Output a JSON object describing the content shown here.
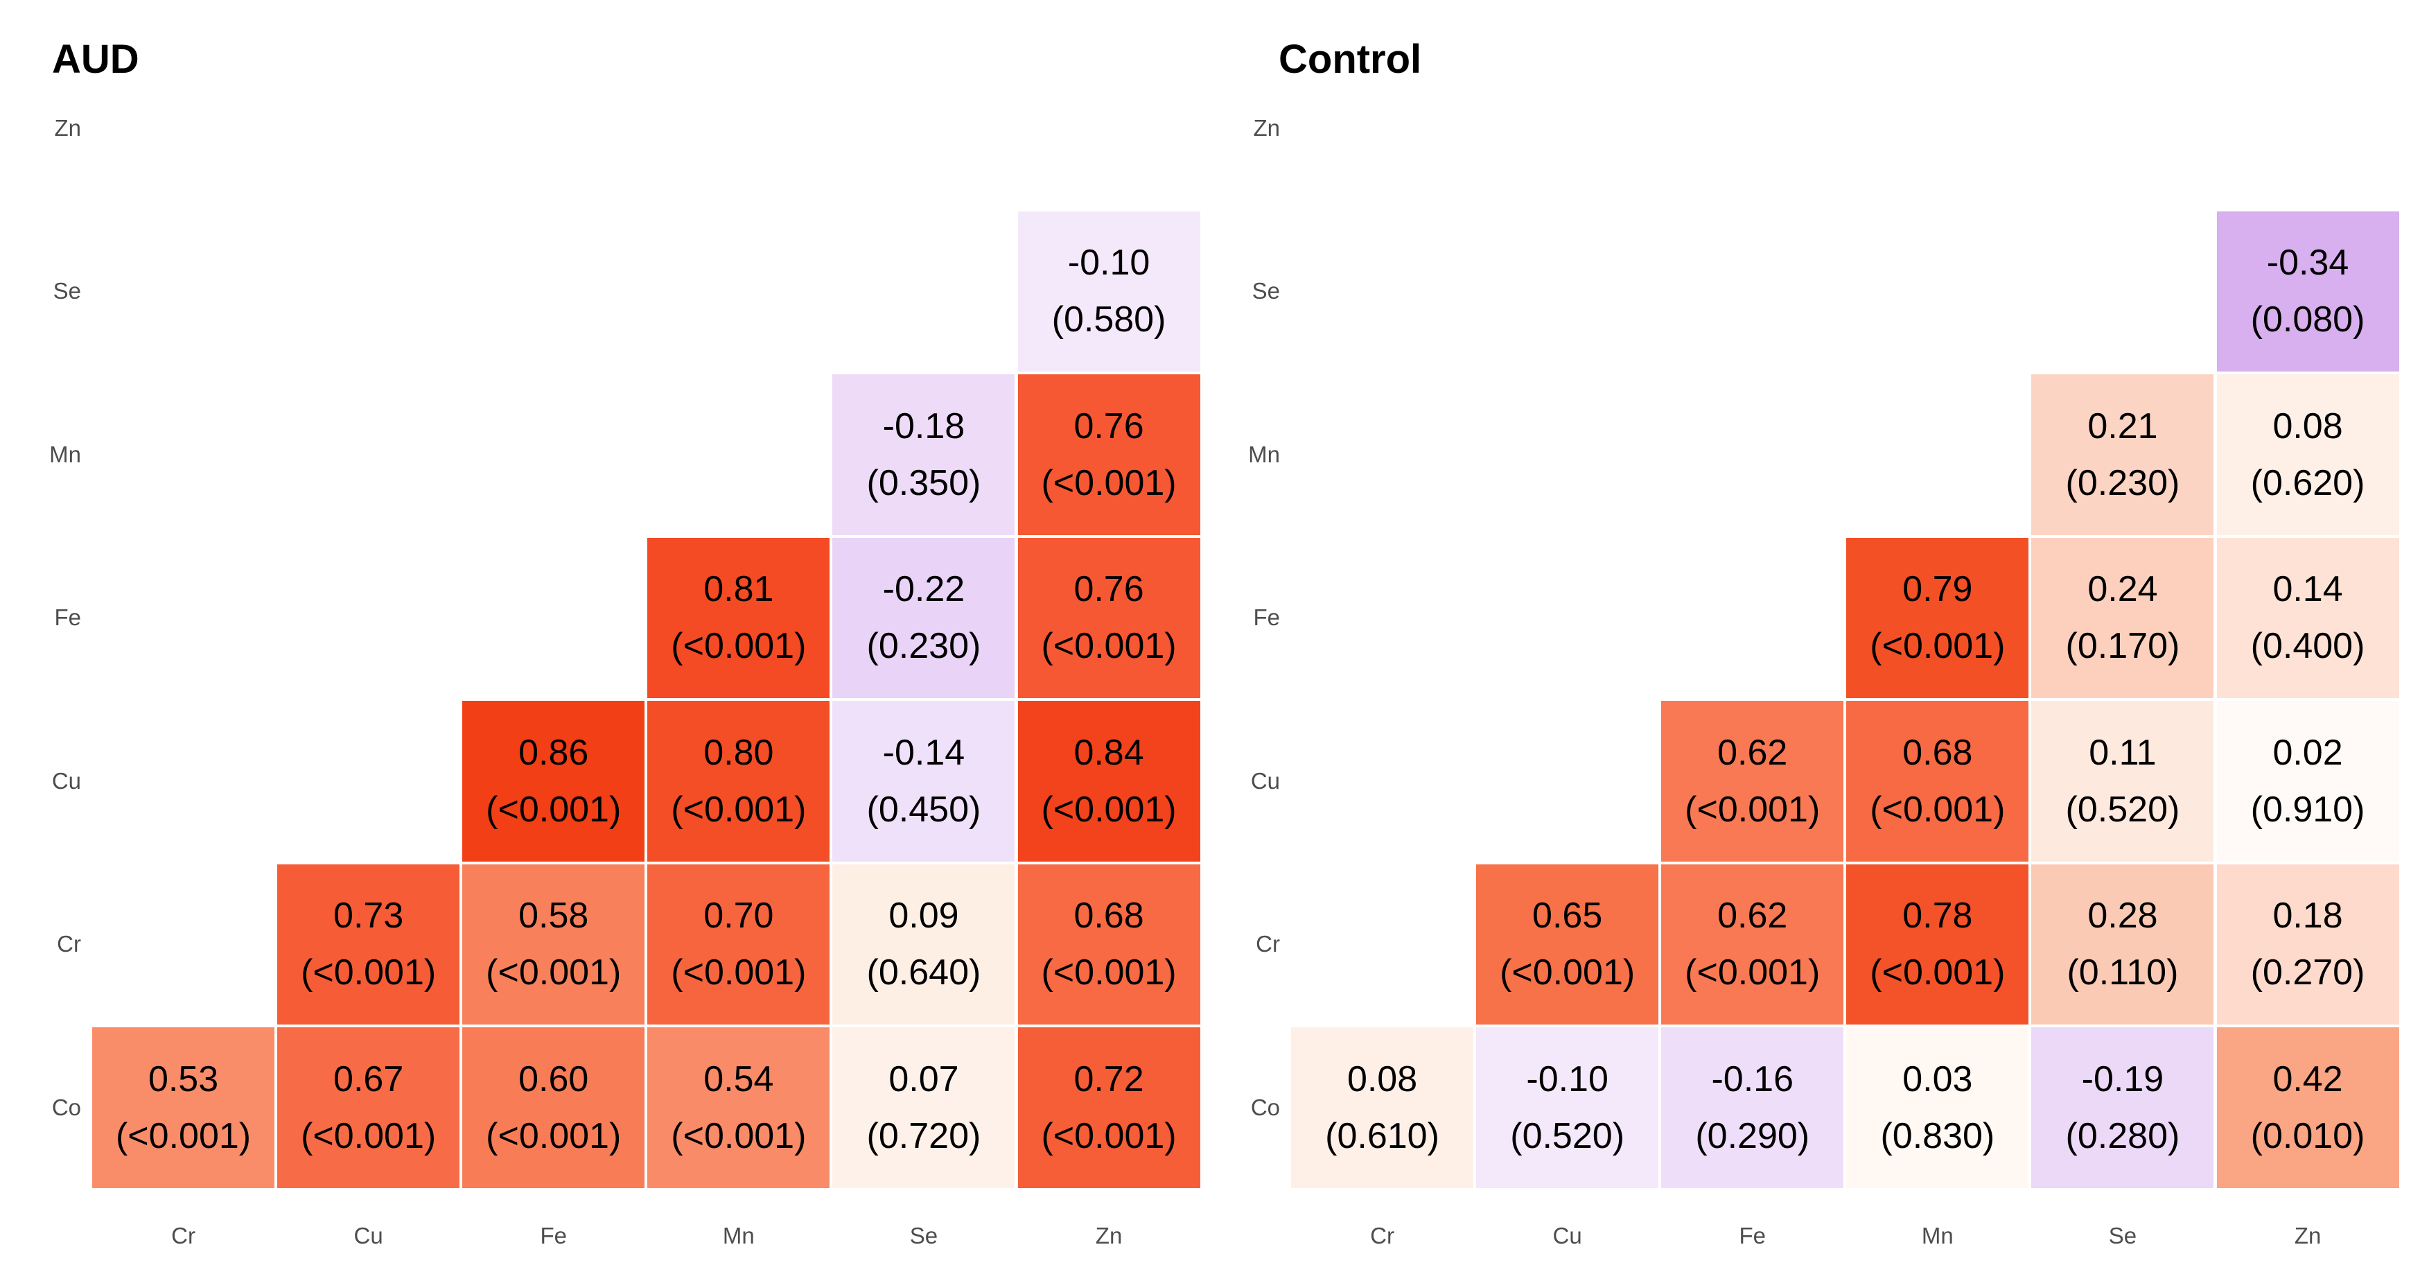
{
  "figure": {
    "background": "#ffffff",
    "text_color": "#000000",
    "axis_label_color": "#4d4d4d"
  },
  "chart_data": [
    {
      "type": "heatmap",
      "title": "AUD",
      "rows_top_to_bottom": [
        "Zn",
        "Se",
        "Mn",
        "Fe",
        "Cu",
        "Cr",
        "Co"
      ],
      "cols_left_to_right": [
        "Cr",
        "Cu",
        "Fe",
        "Mn",
        "Se",
        "Zn"
      ],
      "legend_position": "none",
      "grid": false,
      "cell_format": "correlation (p-value)",
      "cells": [
        {
          "row": "Se",
          "col": "Zn",
          "r": "-0.10",
          "p": "(0.580)",
          "value": -0.1,
          "color": "#F4E8FB"
        },
        {
          "row": "Mn",
          "col": "Se",
          "r": "-0.18",
          "p": "(0.350)",
          "value": -0.18,
          "color": "#EDDBF8"
        },
        {
          "row": "Mn",
          "col": "Zn",
          "r": "0.76",
          "p": "(<0.001)",
          "value": 0.76,
          "color": "#F65833"
        },
        {
          "row": "Fe",
          "col": "Mn",
          "r": "0.81",
          "p": "(<0.001)",
          "value": 0.81,
          "color": "#F44B24"
        },
        {
          "row": "Fe",
          "col": "Se",
          "r": "-0.22",
          "p": "(0.230)",
          "value": -0.22,
          "color": "#E9D3F6"
        },
        {
          "row": "Fe",
          "col": "Zn",
          "r": "0.76",
          "p": "(<0.001)",
          "value": 0.76,
          "color": "#F65833"
        },
        {
          "row": "Cu",
          "col": "Fe",
          "r": "0.86",
          "p": "(<0.001)",
          "value": 0.86,
          "color": "#F23F16"
        },
        {
          "row": "Cu",
          "col": "Mn",
          "r": "0.80",
          "p": "(<0.001)",
          "value": 0.8,
          "color": "#F44E27"
        },
        {
          "row": "Cu",
          "col": "Se",
          "r": "-0.14",
          "p": "(0.450)",
          "value": -0.14,
          "color": "#F0E1FA"
        },
        {
          "row": "Cu",
          "col": "Zn",
          "r": "0.84",
          "p": "(<0.001)",
          "value": 0.84,
          "color": "#F3431C"
        },
        {
          "row": "Cr",
          "col": "Cu",
          "r": "0.73",
          "p": "(<0.001)",
          "value": 0.73,
          "color": "#F65C36"
        },
        {
          "row": "Cr",
          "col": "Fe",
          "r": "0.58",
          "p": "(<0.001)",
          "value": 0.58,
          "color": "#F8815B"
        },
        {
          "row": "Cr",
          "col": "Mn",
          "r": "0.70",
          "p": "(<0.001)",
          "value": 0.7,
          "color": "#F7653F"
        },
        {
          "row": "Cr",
          "col": "Se",
          "r": "0.09",
          "p": "(0.640)",
          "value": 0.09,
          "color": "#FEEFE5"
        },
        {
          "row": "Cr",
          "col": "Zn",
          "r": "0.68",
          "p": "(<0.001)",
          "value": 0.68,
          "color": "#F76A44"
        },
        {
          "row": "Co",
          "col": "Cr",
          "r": "0.53",
          "p": "(<0.001)",
          "value": 0.53,
          "color": "#F98D6A"
        },
        {
          "row": "Co",
          "col": "Cu",
          "r": "0.67",
          "p": "(<0.001)",
          "value": 0.67,
          "color": "#F76C46"
        },
        {
          "row": "Co",
          "col": "Fe",
          "r": "0.60",
          "p": "(<0.001)",
          "value": 0.6,
          "color": "#F87D56"
        },
        {
          "row": "Co",
          "col": "Mn",
          "r": "0.54",
          "p": "(<0.001)",
          "value": 0.54,
          "color": "#F98B68"
        },
        {
          "row": "Co",
          "col": "Se",
          "r": "0.07",
          "p": "(0.720)",
          "value": 0.07,
          "color": "#FEF1E9"
        },
        {
          "row": "Co",
          "col": "Zn",
          "r": "0.72",
          "p": "(<0.001)",
          "value": 0.72,
          "color": "#F65E38"
        }
      ]
    },
    {
      "type": "heatmap",
      "title": "Control",
      "rows_top_to_bottom": [
        "Zn",
        "Se",
        "Mn",
        "Fe",
        "Cu",
        "Cr",
        "Co"
      ],
      "cols_left_to_right": [
        "Cr",
        "Cu",
        "Fe",
        "Mn",
        "Se",
        "Zn"
      ],
      "legend_position": "none",
      "grid": false,
      "cell_format": "correlation (p-value)",
      "cells": [
        {
          "row": "Se",
          "col": "Zn",
          "r": "-0.34",
          "p": "(0.080)",
          "value": -0.34,
          "color": "#D8AFEF"
        },
        {
          "row": "Mn",
          "col": "Se",
          "r": "0.21",
          "p": "(0.230)",
          "value": 0.21,
          "color": "#FCD4C3"
        },
        {
          "row": "Mn",
          "col": "Zn",
          "r": "0.08",
          "p": "(0.620)",
          "value": 0.08,
          "color": "#FEF0E7"
        },
        {
          "row": "Fe",
          "col": "Mn",
          "r": "0.79",
          "p": "(<0.001)",
          "value": 0.79,
          "color": "#F45026"
        },
        {
          "row": "Fe",
          "col": "Se",
          "r": "0.24",
          "p": "(0.170)",
          "value": 0.24,
          "color": "#FCD0BD"
        },
        {
          "row": "Fe",
          "col": "Zn",
          "r": "0.14",
          "p": "(0.400)",
          "value": 0.14,
          "color": "#FDE2D5"
        },
        {
          "row": "Cu",
          "col": "Fe",
          "r": "0.62",
          "p": "(<0.001)",
          "value": 0.62,
          "color": "#F87953"
        },
        {
          "row": "Cu",
          "col": "Mn",
          "r": "0.68",
          "p": "(<0.001)",
          "value": 0.68,
          "color": "#F76A44"
        },
        {
          "row": "Cu",
          "col": "Se",
          "r": "0.11",
          "p": "(0.520)",
          "value": 0.11,
          "color": "#FEE9DF"
        },
        {
          "row": "Cu",
          "col": "Zn",
          "r": "0.02",
          "p": "(0.910)",
          "value": 0.02,
          "color": "#FFFAF7"
        },
        {
          "row": "Cr",
          "col": "Cu",
          "r": "0.65",
          "p": "(<0.001)",
          "value": 0.65,
          "color": "#F77149"
        },
        {
          "row": "Cr",
          "col": "Fe",
          "r": "0.62",
          "p": "(<0.001)",
          "value": 0.62,
          "color": "#F87953"
        },
        {
          "row": "Cr",
          "col": "Mn",
          "r": "0.78",
          "p": "(<0.001)",
          "value": 0.78,
          "color": "#F45228"
        },
        {
          "row": "Cr",
          "col": "Se",
          "r": "0.28",
          "p": "(0.110)",
          "value": 0.28,
          "color": "#FBCAB4"
        },
        {
          "row": "Cr",
          "col": "Zn",
          "r": "0.18",
          "p": "(0.270)",
          "value": 0.18,
          "color": "#FDDACB"
        },
        {
          "row": "Co",
          "col": "Cr",
          "r": "0.08",
          "p": "(0.610)",
          "value": 0.08,
          "color": "#FEF0E7"
        },
        {
          "row": "Co",
          "col": "Cu",
          "r": "-0.10",
          "p": "(0.520)",
          "value": -0.1,
          "color": "#F4E8FB"
        },
        {
          "row": "Co",
          "col": "Fe",
          "r": "-0.16",
          "p": "(0.290)",
          "value": -0.16,
          "color": "#EFDEF9"
        },
        {
          "row": "Co",
          "col": "Mn",
          "r": "0.03",
          "p": "(0.830)",
          "value": 0.03,
          "color": "#FFF8F3"
        },
        {
          "row": "Co",
          "col": "Se",
          "r": "-0.19",
          "p": "(0.280)",
          "value": -0.19,
          "color": "#ECD8F7"
        },
        {
          "row": "Co",
          "col": "Zn",
          "r": "0.42",
          "p": "(0.010)",
          "value": 0.42,
          "color": "#FAA583"
        }
      ]
    }
  ]
}
